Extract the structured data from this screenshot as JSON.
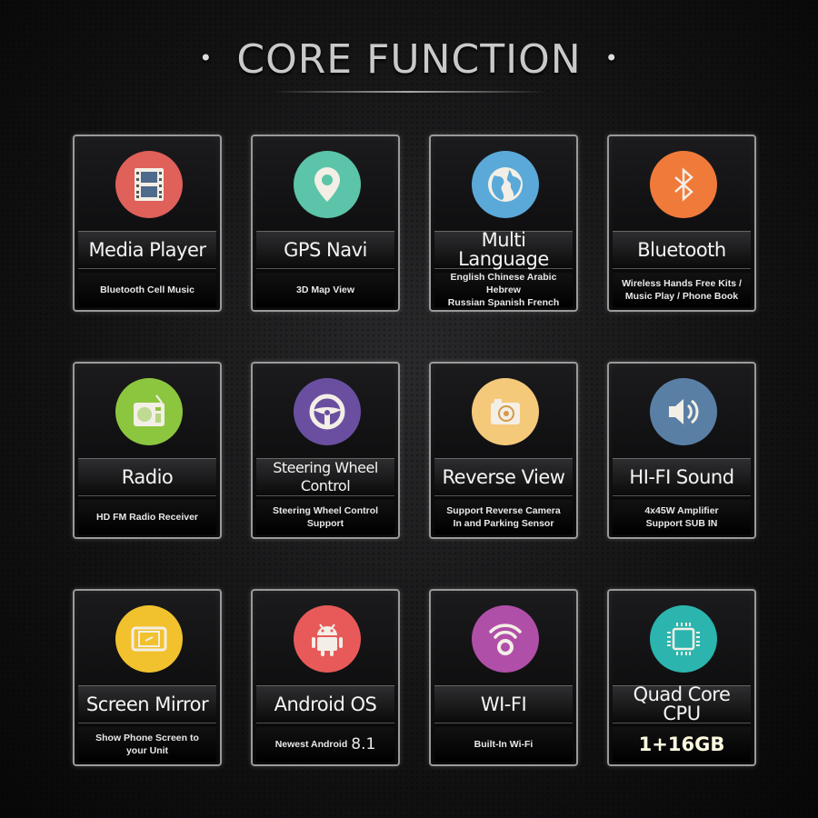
{
  "heading": {
    "title": "CORE FUNCTION",
    "bullet": "•"
  },
  "cards": [
    {
      "title": "Media Player",
      "subtitle": "Bluetooth Cell Music",
      "icon": "film-icon",
      "color": "#e0605a"
    },
    {
      "title": "GPS Navi",
      "subtitle": "3D Map View",
      "icon": "map-pin-icon",
      "color": "#5cc4a8"
    },
    {
      "title": "Multi Language",
      "subtitle": "English Chinese Arabic Hebrew\nRussian Spanish French",
      "icon": "globe-icon",
      "color": "#5aa9d8"
    },
    {
      "title": "Bluetooth",
      "subtitle": "Wireless Hands Free Kits /\nMusic Play / Phone Book",
      "icon": "bluetooth-icon",
      "color": "#f07a3a"
    },
    {
      "title": "Radio",
      "subtitle": "HD FM Radio Receiver",
      "icon": "radio-icon",
      "color": "#8cc63f"
    },
    {
      "title": "Steering Wheel\nControl",
      "subtitle": "Steering Wheel Control\nSupport",
      "icon": "steering-wheel-icon",
      "color": "#6a4fa0"
    },
    {
      "title": "Reverse View",
      "subtitle": "Support Reverse Camera\nIn and Parking Sensor",
      "icon": "camera-icon",
      "color": "#f5c97a"
    },
    {
      "title": "HI-FI Sound",
      "subtitle": "4x45W Amplifier\nSupport SUB IN",
      "icon": "speaker-icon",
      "color": "#5a7fa5"
    },
    {
      "title": "Screen Mirror",
      "subtitle": "Show Phone Screen to\nyour Unit",
      "icon": "phone-mirror-icon",
      "color": "#f2c12e"
    },
    {
      "title": "Android OS",
      "subtitle": "Newest Android",
      "subtitle_extra": "8.1",
      "icon": "android-icon",
      "color": "#e85a5a"
    },
    {
      "title": "WI-FI",
      "subtitle": "Built-In Wi-Fi",
      "icon": "wifi-icon",
      "color": "#b04fa8"
    },
    {
      "title": "Quad Core CPU",
      "subtitle": "1+16GB",
      "subtitle_big": true,
      "icon": "cpu-chip-icon",
      "color": "#2bb5ae"
    }
  ]
}
